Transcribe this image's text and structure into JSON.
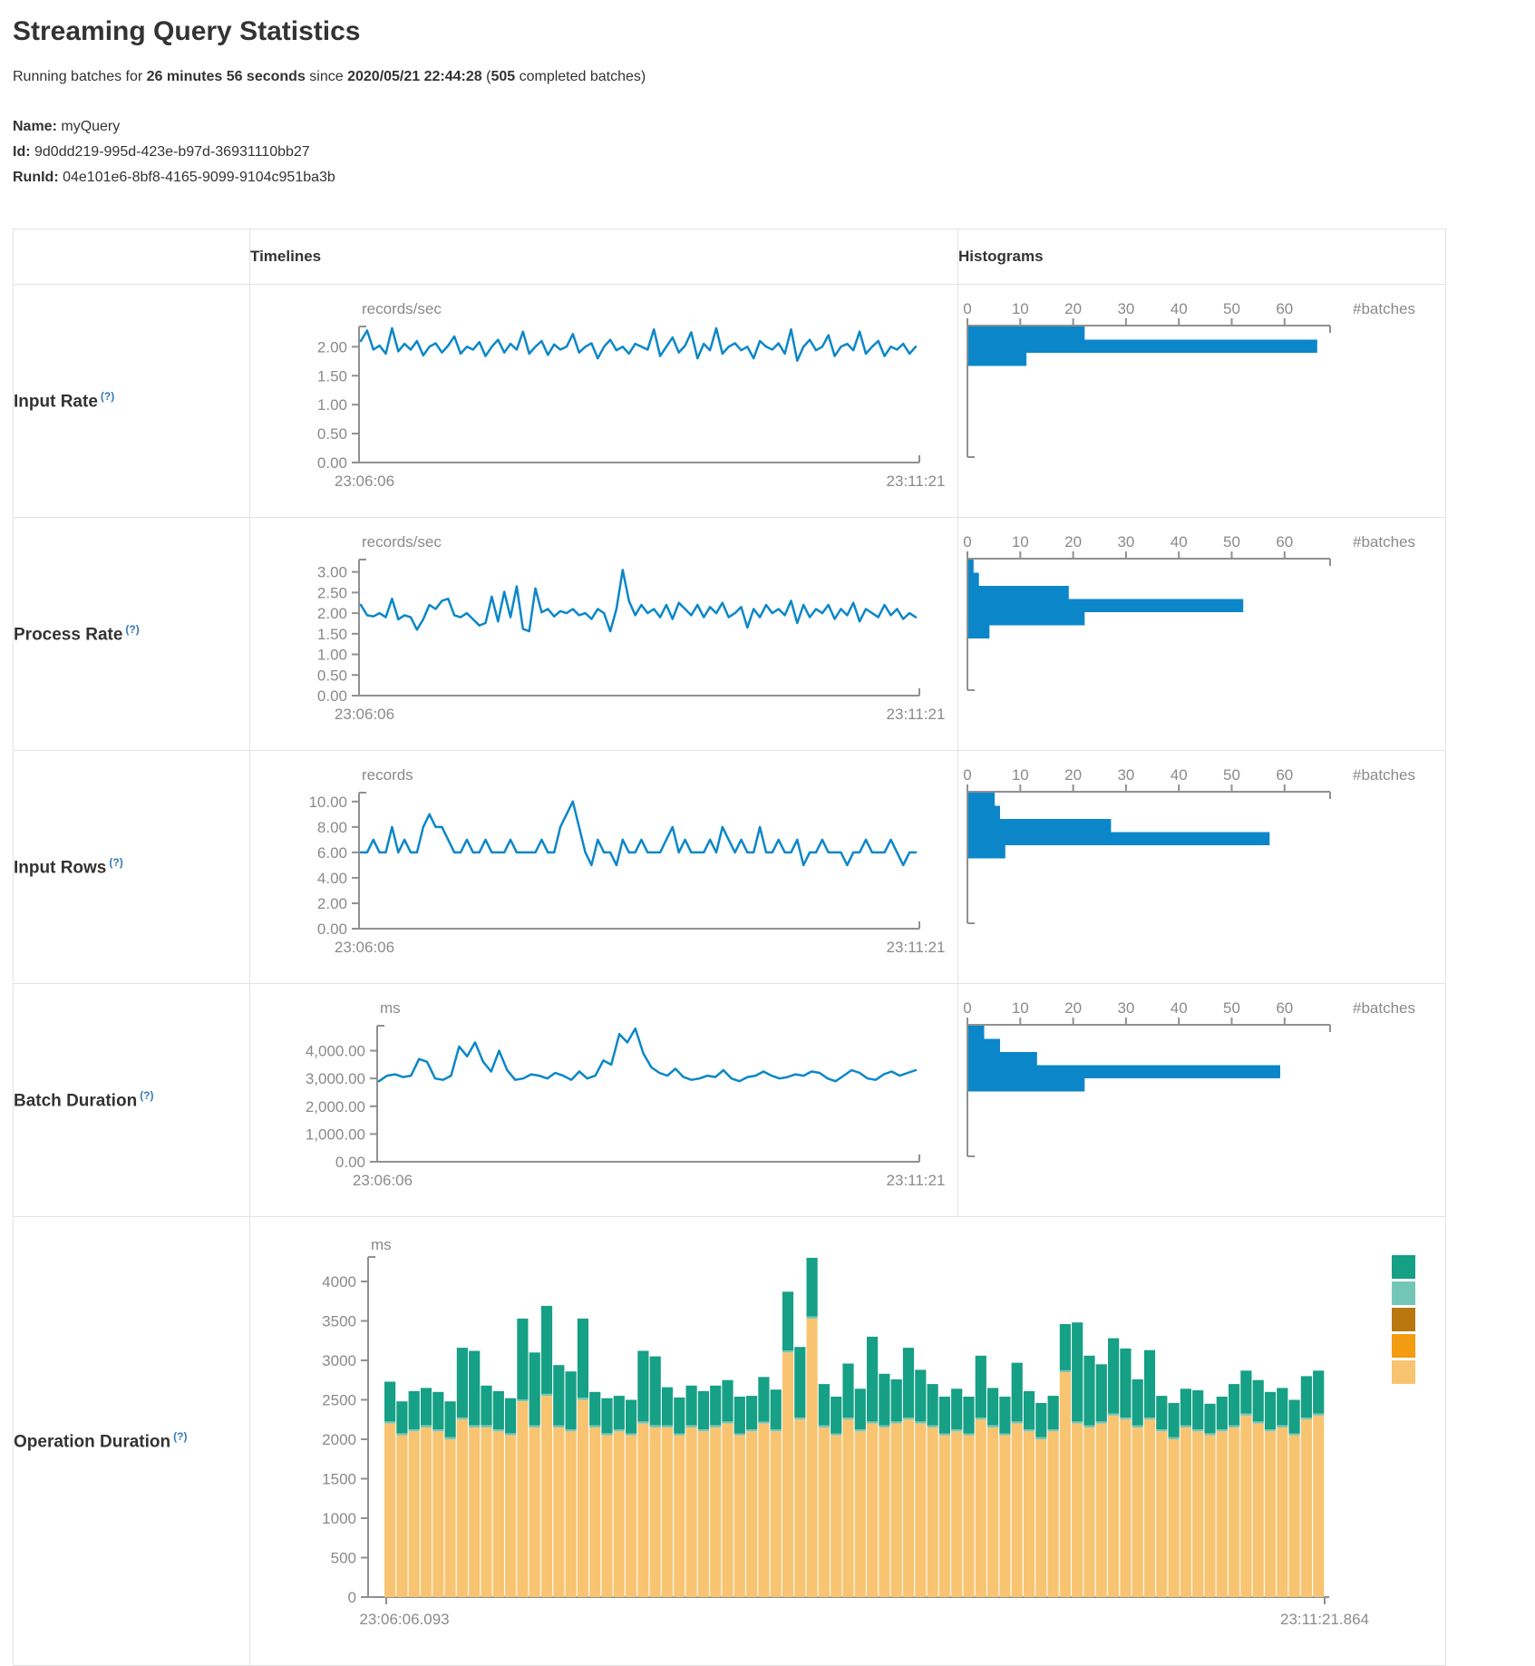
{
  "page": {
    "title": "Streaming Query Statistics",
    "running_line": {
      "prefix": "Running batches for ",
      "duration": "26 minutes 56 seconds",
      "since": " since ",
      "timestamp": "2020/05/21 22:44:28",
      "paren_open": " (",
      "completed_count": "505",
      "suffix": " completed batches)"
    },
    "query_info": {
      "name_label": "Name:",
      "name_value": "myQuery",
      "id_label": "Id:",
      "id_value": "9d0dd219-995d-423e-b97d-36931110bb27",
      "runid_label": "RunId:",
      "runid_value": "04e101e6-8bf8-4165-9099-9104c951ba3b"
    }
  },
  "table": {
    "timelines_header": "Timelines",
    "histograms_header": "Histograms",
    "help_marker": "(?)",
    "rows": [
      {
        "label": "Input Rate"
      },
      {
        "label": "Process Rate"
      },
      {
        "label": "Input Rows"
      },
      {
        "label": "Batch Duration"
      },
      {
        "label": "Operation Duration"
      }
    ]
  },
  "colors": {
    "line_blue": "#0b87c9",
    "axis_gray": "#909090",
    "tick_text_gray": "#8a8a8a",
    "help_blue": "#337ab7",
    "operation_palette": [
      "#16A085",
      "#73C6B6",
      "#B9770E",
      "#F39C12",
      "#F8C471"
    ]
  },
  "chart_data": [
    {
      "name": "input-rate",
      "type": "line",
      "unit": "records/sec",
      "ytick_values": [
        0,
        0.5,
        1.0,
        1.5,
        2.0
      ],
      "ytick_labels": [
        "0.00",
        "0.50",
        "1.00",
        "1.50",
        "2.00"
      ],
      "ylim": [
        0,
        2.35
      ],
      "x_start_label": "23:06:06",
      "x_end_label": "23:11:21",
      "values": [
        2.1,
        2.28,
        1.95,
        2.02,
        1.88,
        2.32,
        1.92,
        2.05,
        1.95,
        2.1,
        1.85,
        2.0,
        2.06,
        1.9,
        2.02,
        2.18,
        1.88,
        2.0,
        1.95,
        2.08,
        1.84,
        2.0,
        2.12,
        1.9,
        2.05,
        1.95,
        2.26,
        1.88,
        2.0,
        2.1,
        1.86,
        2.04,
        1.95,
        2.0,
        2.22,
        1.9,
        2.0,
        2.06,
        1.8,
        2.0,
        2.12,
        1.94,
        2.0,
        1.88,
        2.05,
        2.0,
        1.95,
        2.3,
        1.84,
        2.0,
        2.16,
        1.9,
        2.02,
        2.25,
        1.8,
        2.05,
        1.94,
        2.32,
        1.88,
        2.0,
        2.06,
        1.94,
        2.0,
        1.8,
        2.1,
        2.0,
        1.95,
        2.06,
        1.88,
        2.3,
        1.76,
        2.0,
        2.12,
        1.94,
        2.0,
        2.2,
        1.84,
        2.0,
        2.05,
        1.94,
        2.26,
        1.88,
        2.0,
        2.1,
        1.84,
        2.0,
        1.95,
        2.05,
        1.88,
        2.0
      ],
      "histogram": {
        "counts_top_to_bottom": [
          22,
          66,
          11
        ],
        "xticks": [
          0,
          10,
          20,
          30,
          40,
          50,
          60
        ],
        "xlabel": "#batches"
      }
    },
    {
      "name": "process-rate",
      "type": "line",
      "unit": "records/sec",
      "ytick_values": [
        0,
        0.5,
        1.0,
        1.5,
        2.0,
        2.5,
        3.0
      ],
      "ytick_labels": [
        "0.00",
        "0.50",
        "1.00",
        "1.50",
        "2.00",
        "2.50",
        "3.00"
      ],
      "ylim": [
        0,
        3.3
      ],
      "x_start_label": "23:06:06",
      "x_end_label": "23:11:21",
      "values": [
        2.2,
        1.95,
        1.92,
        2.0,
        1.9,
        2.35,
        1.85,
        1.95,
        1.9,
        1.6,
        1.85,
        2.2,
        2.1,
        2.3,
        2.35,
        1.95,
        1.9,
        2.0,
        1.85,
        1.7,
        1.76,
        2.4,
        1.8,
        2.52,
        1.9,
        2.65,
        1.62,
        1.56,
        2.6,
        2.02,
        2.1,
        1.92,
        2.05,
        2.0,
        2.1,
        1.95,
        2.0,
        1.86,
        2.1,
        2.0,
        1.56,
        2.1,
        3.05,
        2.3,
        1.95,
        2.2,
        2.0,
        2.1,
        1.9,
        2.2,
        1.86,
        2.25,
        2.1,
        1.95,
        2.2,
        1.9,
        2.15,
        2.0,
        2.25,
        1.9,
        2.0,
        2.15,
        1.65,
        2.1,
        1.9,
        2.2,
        2.0,
        2.1,
        1.95,
        2.3,
        1.76,
        2.2,
        1.9,
        2.1,
        2.0,
        2.2,
        1.86,
        2.1,
        1.95,
        2.25,
        1.8,
        2.1,
        2.0,
        1.9,
        2.2,
        1.95,
        2.1,
        1.86,
        2.0,
        1.9
      ],
      "histogram": {
        "counts_top_to_bottom": [
          1,
          2,
          19,
          52,
          22,
          4
        ],
        "xticks": [
          0,
          10,
          20,
          30,
          40,
          50,
          60
        ],
        "xlabel": "#batches"
      }
    },
    {
      "name": "input-rows",
      "type": "line",
      "unit": "records",
      "ytick_values": [
        0,
        2,
        4,
        6,
        8,
        10
      ],
      "ytick_labels": [
        "0.00",
        "2.00",
        "4.00",
        "6.00",
        "8.00",
        "10.00"
      ],
      "ylim": [
        0,
        10.7
      ],
      "x_start_label": "23:06:06",
      "x_end_label": "23:11:21",
      "values": [
        6,
        6,
        7,
        6,
        6,
        8,
        6,
        7,
        6,
        6,
        8,
        9,
        8,
        8,
        7,
        6,
        6,
        7,
        6,
        6,
        7,
        6,
        6,
        6,
        7,
        6,
        6,
        6,
        6,
        7,
        6,
        6,
        8,
        9,
        10,
        8,
        6,
        5,
        7,
        6,
        6,
        5,
        7,
        6,
        6,
        7,
        6,
        6,
        6,
        7,
        8,
        6,
        7,
        6,
        6,
        6,
        7,
        6,
        8,
        7,
        6,
        7,
        6,
        6,
        8,
        6,
        6,
        7,
        6,
        6,
        7,
        5,
        6,
        6,
        7,
        6,
        6,
        6,
        5,
        6,
        6,
        7,
        6,
        6,
        6,
        7,
        6,
        5,
        6,
        6
      ],
      "histogram": {
        "counts_top_to_bottom": [
          5,
          6,
          27,
          57,
          7
        ],
        "xticks": [
          0,
          10,
          20,
          30,
          40,
          50,
          60
        ],
        "xlabel": "#batches"
      }
    },
    {
      "name": "batch-duration",
      "type": "line",
      "unit": "ms",
      "ytick_values": [
        0,
        1000,
        2000,
        3000,
        4000
      ],
      "ytick_labels": [
        "0.00",
        "1,000.00",
        "2,000.00",
        "3,000.00",
        "4,000.00"
      ],
      "ylim": [
        0,
        4900
      ],
      "x_start_label": "23:06:06",
      "x_end_label": "23:11:21",
      "values": [
        2900,
        3100,
        3150,
        3050,
        3100,
        3700,
        3600,
        3000,
        2950,
        3100,
        4150,
        3800,
        4300,
        3600,
        3250,
        4000,
        3300,
        2950,
        3000,
        3150,
        3100,
        3000,
        3200,
        3100,
        2950,
        3250,
        3000,
        3100,
        3650,
        3500,
        4600,
        4300,
        4800,
        3900,
        3400,
        3200,
        3100,
        3350,
        3050,
        2950,
        3000,
        3100,
        3050,
        3300,
        3000,
        2900,
        3050,
        3100,
        3250,
        3100,
        3000,
        3050,
        3150,
        3100,
        3250,
        3200,
        3000,
        2900,
        3100,
        3300,
        3200,
        3000,
        2950,
        3150,
        3250,
        3100,
        3200,
        3300
      ],
      "histogram": {
        "counts_top_to_bottom": [
          3,
          6,
          13,
          59,
          22
        ],
        "xticks": [
          0,
          10,
          20,
          30,
          40,
          50,
          60
        ],
        "xlabel": "#batches"
      }
    },
    {
      "name": "operation-duration",
      "type": "stacked_bar",
      "unit": "ms",
      "ytick_values": [
        0,
        500,
        1000,
        1500,
        2000,
        2500,
        3000,
        3500,
        4000
      ],
      "ytick_labels": [
        "0",
        "500",
        "1000",
        "1500",
        "2000",
        "2500",
        "3000",
        "3500",
        "4000"
      ],
      "ylim": [
        0,
        4310
      ],
      "x_start_label": "23:06:06.093",
      "x_end_label": "23:11:21.864",
      "legend_colors": [
        "#16A085",
        "#73C6B6",
        "#B9770E",
        "#F39C12",
        "#F8C471"
      ],
      "base_color": "#F8C471",
      "sliver_color": "#73C6B6",
      "top_color": "#16A085",
      "sliver_value": 25,
      "base_values": [
        2200,
        2050,
        2100,
        2150,
        2100,
        2000,
        2250,
        2150,
        2150,
        2100,
        2050,
        2480,
        2150,
        2550,
        2150,
        2100,
        2500,
        2150,
        2050,
        2100,
        2050,
        2200,
        2150,
        2150,
        2050,
        2150,
        2100,
        2150,
        2200,
        2050,
        2100,
        2200,
        2100,
        3100,
        2250,
        3530,
        2150,
        2050,
        2250,
        2100,
        2200,
        2150,
        2200,
        2250,
        2200,
        2150,
        2050,
        2100,
        2050,
        2250,
        2150,
        2050,
        2200,
        2100,
        2000,
        2100,
        2850,
        2200,
        2150,
        2200,
        2300,
        2250,
        2150,
        2250,
        2100,
        2000,
        2150,
        2100,
        2050,
        2100,
        2150,
        2300,
        2200,
        2100,
        2150,
        2050,
        2250,
        2300
      ],
      "total_values": [
        2730,
        2480,
        2610,
        2650,
        2600,
        2480,
        3160,
        3120,
        2680,
        2610,
        2520,
        3530,
        3100,
        3690,
        2940,
        2860,
        3530,
        2600,
        2520,
        2550,
        2500,
        3120,
        3050,
        2660,
        2530,
        2680,
        2610,
        2680,
        2750,
        2540,
        2550,
        2790,
        2630,
        3870,
        3170,
        4300,
        2700,
        2540,
        2960,
        2640,
        3300,
        2830,
        2760,
        3160,
        2880,
        2700,
        2540,
        2640,
        2540,
        3060,
        2650,
        2540,
        2970,
        2610,
        2460,
        2550,
        3460,
        3480,
        3060,
        2950,
        3280,
        3150,
        2760,
        3130,
        2550,
        2460,
        2640,
        2620,
        2450,
        2540,
        2700,
        2870,
        2750,
        2600,
        2650,
        2500,
        2800,
        2870
      ]
    }
  ]
}
